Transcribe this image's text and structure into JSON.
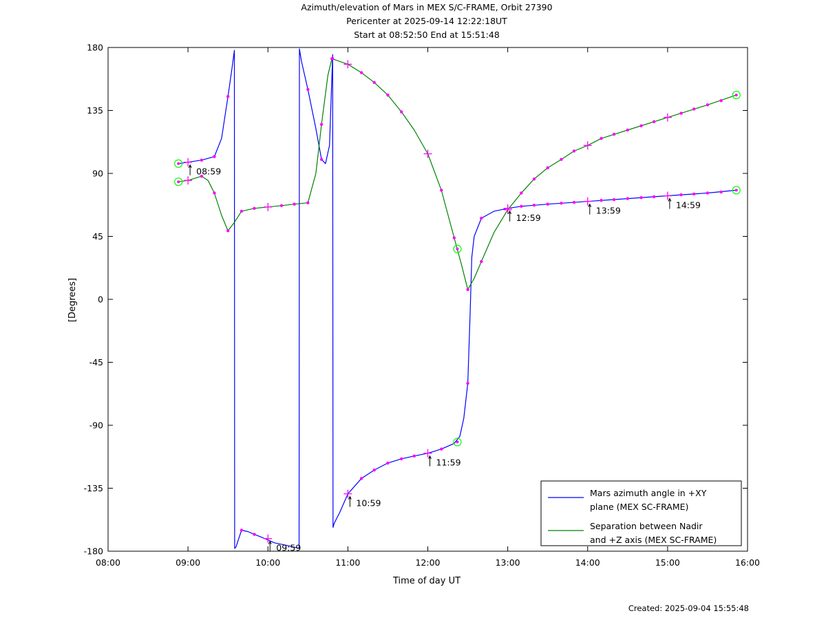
{
  "title": {
    "line1": "Azimuth/elevation of Mars in MEX S/C-FRAME,  Orbit 27390",
    "line2": "Pericenter at 2025-09-14 12:22:18UT",
    "line3": "Start at 08:52:50 End at 15:51:48"
  },
  "footer": {
    "created": "Created: 2025-09-04 15:55:48"
  },
  "chart_data": {
    "type": "line",
    "xlabel": "Time of day UT",
    "ylabel": "[Degrees]",
    "xlim": [
      8,
      16
    ],
    "ylim": [
      -180,
      180
    ],
    "x_ticks": [
      8,
      9,
      10,
      11,
      12,
      13,
      14,
      15,
      16
    ],
    "x_tick_labels": [
      "08:00",
      "09:00",
      "10:00",
      "11:00",
      "12:00",
      "13:00",
      "14:00",
      "15:00",
      "16:00"
    ],
    "y_ticks": [
      180,
      135,
      90,
      45,
      0,
      -45,
      -90,
      -135,
      -180
    ],
    "y_tick_labels": [
      "180",
      "135",
      "90",
      "45",
      "0",
      "-45",
      "-90",
      "-135",
      "-180"
    ],
    "legend_position": "bottom-right",
    "series": [
      {
        "name": "Mars azimuth angle in +XY plane (MEX SC-FRAME)",
        "legend_lines": [
          "Mars azimuth angle in +XY",
          "plane (MEX SC-FRAME)"
        ],
        "color": "#0000ff",
        "points": [
          [
            8.88,
            97
          ],
          [
            9.0,
            98
          ],
          [
            9.17,
            99.5
          ],
          [
            9.33,
            102
          ],
          [
            9.42,
            115
          ],
          [
            9.5,
            145
          ],
          [
            9.55,
            165
          ],
          [
            9.58,
            178
          ],
          [
            9.584,
            -178
          ],
          [
            9.6,
            -177
          ],
          [
            9.67,
            -165
          ],
          [
            9.75,
            -166
          ],
          [
            9.83,
            -168
          ],
          [
            9.92,
            -170
          ],
          [
            10.0,
            -172
          ],
          [
            10.08,
            -174
          ],
          [
            10.25,
            -176
          ],
          [
            10.39,
            -178
          ],
          [
            10.394,
            179
          ],
          [
            10.42,
            170
          ],
          [
            10.5,
            150
          ],
          [
            10.6,
            122
          ],
          [
            10.67,
            100
          ],
          [
            10.72,
            97
          ],
          [
            10.77,
            110
          ],
          [
            10.81,
            175
          ],
          [
            10.814,
            -163
          ],
          [
            10.83,
            -160
          ],
          [
            10.9,
            -152
          ],
          [
            11.0,
            -139
          ],
          [
            11.17,
            -128
          ],
          [
            11.33,
            -122
          ],
          [
            11.5,
            -117
          ],
          [
            11.67,
            -114
          ],
          [
            11.83,
            -112
          ],
          [
            12.0,
            -110
          ],
          [
            12.17,
            -107
          ],
          [
            12.33,
            -103
          ],
          [
            12.4,
            -98
          ],
          [
            12.45,
            -85
          ],
          [
            12.5,
            -60
          ],
          [
            12.53,
            -10
          ],
          [
            12.55,
            30
          ],
          [
            12.58,
            45
          ],
          [
            12.67,
            58
          ],
          [
            12.83,
            63
          ],
          [
            13.0,
            65
          ],
          [
            13.17,
            66.5
          ],
          [
            13.5,
            68
          ],
          [
            14.0,
            70
          ],
          [
            14.5,
            72
          ],
          [
            15.0,
            74
          ],
          [
            15.5,
            76
          ],
          [
            15.86,
            78
          ]
        ]
      },
      {
        "name": "Separation between Nadir and +Z axis (MEX SC-FRAME)",
        "legend_lines": [
          "Separation between Nadir",
          "and +Z axis (MEX SC-FRAME)"
        ],
        "color": "#008000",
        "points": [
          [
            8.88,
            84
          ],
          [
            9.0,
            85
          ],
          [
            9.17,
            88
          ],
          [
            9.25,
            85
          ],
          [
            9.33,
            76
          ],
          [
            9.42,
            60
          ],
          [
            9.5,
            49
          ],
          [
            9.58,
            55
          ],
          [
            9.67,
            63
          ],
          [
            9.83,
            65
          ],
          [
            10.0,
            66
          ],
          [
            10.17,
            67
          ],
          [
            10.33,
            68
          ],
          [
            10.5,
            69
          ],
          [
            10.6,
            90
          ],
          [
            10.67,
            125
          ],
          [
            10.75,
            160
          ],
          [
            10.8,
            172
          ],
          [
            11.0,
            168
          ],
          [
            11.17,
            162
          ],
          [
            11.33,
            155
          ],
          [
            11.5,
            146
          ],
          [
            11.67,
            134
          ],
          [
            11.83,
            121
          ],
          [
            12.0,
            104
          ],
          [
            12.17,
            78
          ],
          [
            12.33,
            44
          ],
          [
            12.42,
            25
          ],
          [
            12.5,
            7
          ],
          [
            12.58,
            15
          ],
          [
            12.67,
            27
          ],
          [
            12.83,
            48
          ],
          [
            13.0,
            64
          ],
          [
            13.17,
            76
          ],
          [
            13.33,
            86
          ],
          [
            13.5,
            94
          ],
          [
            13.67,
            100
          ],
          [
            13.83,
            106
          ],
          [
            14.0,
            110
          ],
          [
            14.17,
            115
          ],
          [
            14.5,
            121
          ],
          [
            15.0,
            130
          ],
          [
            15.5,
            139
          ],
          [
            15.86,
            146
          ]
        ]
      }
    ],
    "markers": {
      "dot_color": "#ff00ff",
      "circle_color": "#00ff00",
      "circles": [
        [
          8.88,
          97
        ],
        [
          8.88,
          84
        ],
        [
          12.37,
          -102
        ],
        [
          12.37,
          36
        ],
        [
          15.86,
          146
        ],
        [
          15.86,
          78
        ]
      ],
      "crosses": [
        [
          9.0,
          98
        ],
        [
          9.0,
          85
        ],
        [
          10.0,
          -171
        ],
        [
          10.0,
          66
        ],
        [
          11.0,
          -139
        ],
        [
          11.0,
          168
        ],
        [
          12.0,
          -110
        ],
        [
          12.0,
          104
        ],
        [
          13.0,
          65
        ],
        [
          13.0,
          64
        ],
        [
          14.0,
          70
        ],
        [
          14.0,
          110
        ],
        [
          15.0,
          74
        ],
        [
          15.0,
          130
        ]
      ],
      "dots": [
        [
          9.17,
          99.5
        ],
        [
          9.33,
          102
        ],
        [
          9.5,
          145
        ],
        [
          9.17,
          88
        ],
        [
          9.33,
          76
        ],
        [
          9.5,
          49
        ],
        [
          9.67,
          63
        ],
        [
          9.83,
          65
        ],
        [
          10.17,
          67
        ],
        [
          10.33,
          68
        ],
        [
          9.67,
          -165
        ],
        [
          9.83,
          -168
        ],
        [
          10.5,
          150
        ],
        [
          10.67,
          100
        ],
        [
          10.5,
          69
        ],
        [
          10.67,
          125
        ],
        [
          10.8,
          172
        ],
        [
          11.17,
          -128
        ],
        [
          11.33,
          -122
        ],
        [
          11.5,
          -117
        ],
        [
          11.67,
          -114
        ],
        [
          11.83,
          -112
        ],
        [
          12.17,
          -107
        ],
        [
          11.17,
          162
        ],
        [
          11.33,
          155
        ],
        [
          11.5,
          146
        ],
        [
          11.67,
          134
        ],
        [
          12.17,
          78
        ],
        [
          12.33,
          44
        ],
        [
          12.5,
          7
        ],
        [
          12.5,
          -60
        ],
        [
          12.67,
          27
        ],
        [
          12.67,
          58
        ],
        [
          13.17,
          76
        ],
        [
          13.33,
          86
        ],
        [
          13.5,
          94
        ],
        [
          13.67,
          100
        ],
        [
          13.83,
          106
        ],
        [
          14.17,
          115
        ],
        [
          14.33,
          118
        ],
        [
          14.5,
          121
        ],
        [
          14.67,
          124
        ],
        [
          14.83,
          127
        ],
        [
          15.17,
          133
        ],
        [
          15.33,
          136
        ],
        [
          15.5,
          139
        ],
        [
          15.67,
          142
        ],
        [
          13.17,
          66.5
        ],
        [
          13.33,
          67.3
        ],
        [
          13.5,
          68
        ],
        [
          13.67,
          68.7
        ],
        [
          13.83,
          69.3
        ],
        [
          14.17,
          70.7
        ],
        [
          14.33,
          71.3
        ],
        [
          14.5,
          72
        ],
        [
          14.67,
          72.7
        ],
        [
          14.83,
          73.3
        ],
        [
          15.17,
          74.7
        ],
        [
          15.33,
          75.3
        ],
        [
          15.5,
          76
        ],
        [
          15.67,
          76.7
        ],
        [
          10.81,
          172
        ]
      ]
    },
    "annotations": [
      {
        "text": "08:59",
        "x": 9.0,
        "y": 98
      },
      {
        "text": "09:59",
        "x": 10.0,
        "y": -171
      },
      {
        "text": "10:59",
        "x": 11.0,
        "y": -139
      },
      {
        "text": "11:59",
        "x": 12.0,
        "y": -110
      },
      {
        "text": "12:59",
        "x": 13.0,
        "y": 65
      },
      {
        "text": "13:59",
        "x": 14.0,
        "y": 70
      },
      {
        "text": "14:59",
        "x": 15.0,
        "y": 74
      }
    ]
  }
}
